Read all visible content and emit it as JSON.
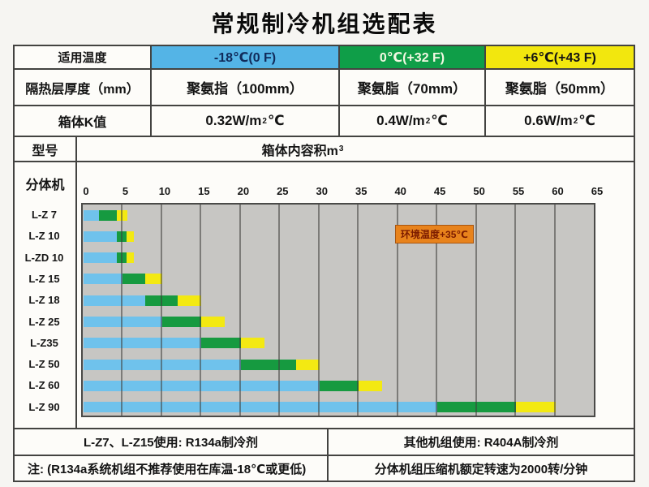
{
  "page": {
    "title": "常规制冷机组选配表"
  },
  "colors": {
    "temp_blue": "#54b4e6",
    "temp_green": "#0f9e48",
    "temp_yellow": "#f2e70e",
    "bar_blue": "#6fc2ec",
    "bar_green": "#169a40",
    "bar_yellow": "#f3e912",
    "plot_background": "#c7c6c3",
    "annotation_orange": "#e8831c",
    "annotation_text": "#7c1c00"
  },
  "table": {
    "row_temp": {
      "label": "适用温度",
      "cells": [
        {
          "text": "-18℃(0 F)",
          "bg": "#54b4e6",
          "fg": "#102a5a"
        },
        {
          "text": "0℃(+32 F)",
          "bg": "#0f9e48",
          "fg": "#f2f8e2"
        },
        {
          "text": "+6℃(+43 F)",
          "bg": "#f2e70e",
          "fg": "#141414"
        }
      ]
    },
    "row_insulation": {
      "label": "隔热层厚度（mm）",
      "cells": [
        "聚氨指（100mm）",
        "聚氨脂（70mm）",
        "聚氨脂（50mm）"
      ]
    },
    "row_k": {
      "label": "箱体K值",
      "cells": [
        {
          "pre": "0.32W/m",
          "sup": "2",
          "post": "℃"
        },
        {
          "pre": "0.4W/m",
          "sup": "2",
          "post": "℃"
        },
        {
          "pre": "0.6W/m",
          "sup": "2",
          "post": "℃"
        }
      ]
    },
    "row_model": {
      "label": "型号",
      "volume_header": {
        "pre": "箱体内容积m",
        "sup": "3"
      }
    },
    "machine_type_label": "分体机"
  },
  "annotation": {
    "text": "环境温度+35℃"
  },
  "chart_data": {
    "type": "bar",
    "orientation": "horizontal-stacked",
    "title": "箱体内容积m³",
    "xlabel": "箱体内容积 (m³)",
    "xlim": [
      0,
      65
    ],
    "x_ticks": [
      0,
      5,
      10,
      15,
      20,
      25,
      30,
      35,
      40,
      45,
      50,
      55,
      60,
      65
    ],
    "grid": true,
    "legend_position": "none",
    "categories": [
      "L-Z 7",
      "L-Z 10",
      "L-ZD 10",
      "L-Z 15",
      "L-Z 18",
      "L-Z 25",
      "L-Z35",
      "L-Z 50",
      "L-Z 60",
      "L-Z 90"
    ],
    "series": [
      {
        "name": "-18℃(0 F)",
        "color": "#6fc2ec",
        "ends": [
          2,
          4.2,
          4.2,
          5,
          7.8,
          10,
          15,
          20,
          30,
          45
        ]
      },
      {
        "name": "0℃(+32 F)",
        "color": "#169a40",
        "ends": [
          4.2,
          5.5,
          5.5,
          7.8,
          12,
          15,
          20,
          27,
          35,
          55
        ]
      },
      {
        "name": "+6℃(+43 F)",
        "color": "#f3e912",
        "ends": [
          5.6,
          6.4,
          6.4,
          10,
          15,
          18,
          23,
          30,
          38,
          60
        ]
      }
    ],
    "annotation": "环境温度+35℃"
  },
  "footer": {
    "r134a": "L-Z7、L-Z15使用: R134a制冷剂",
    "r404a": "其他机组使用: R404A制冷剂",
    "note": "注: (R134a系统机组不推荐使用在库温-18℃或更低)",
    "speed": "分体机组压缩机额定转速为2000转/分钟"
  }
}
